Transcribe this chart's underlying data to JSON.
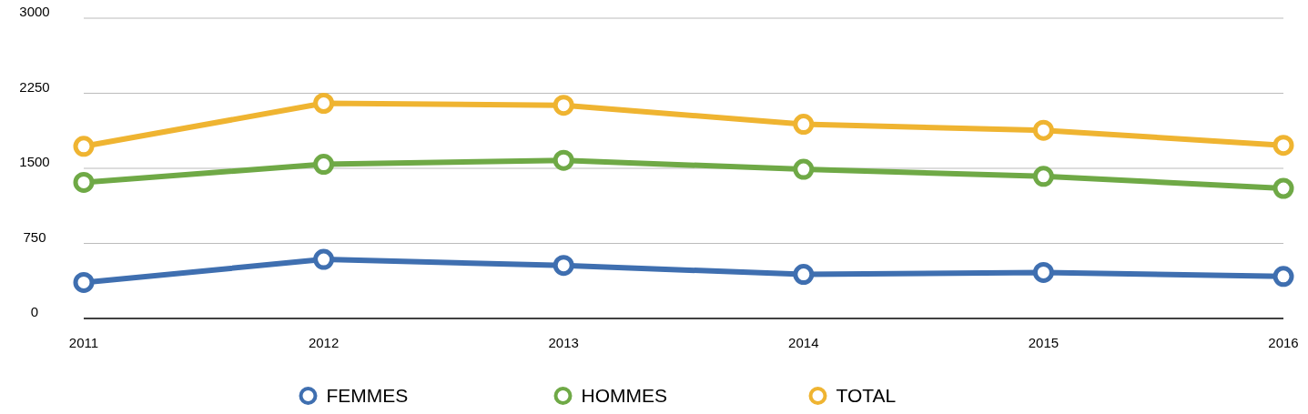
{
  "chart_data": {
    "type": "line",
    "x": [
      2011,
      2012,
      2013,
      2014,
      2015,
      2016
    ],
    "xlim": [
      2011,
      2016
    ],
    "xticks": [
      2011,
      2012,
      2013,
      2014,
      2015,
      2016
    ],
    "ylim": [
      0,
      3000
    ],
    "yticks": [
      0,
      750,
      1500,
      2250,
      3000
    ],
    "grid": "y",
    "legend": "bottom",
    "marker": "circle",
    "series": [
      {
        "name": "FEMMES",
        "color": "#3f6fb0",
        "values": [
          360,
          590,
          530,
          440,
          460,
          420
        ]
      },
      {
        "name": "HOMMES",
        "color": "#6fa946",
        "values": [
          1360,
          1540,
          1580,
          1490,
          1420,
          1300
        ]
      },
      {
        "name": "TOTAL",
        "color": "#efb431",
        "values": [
          1720,
          2150,
          2130,
          1940,
          1880,
          1730
        ]
      }
    ]
  }
}
